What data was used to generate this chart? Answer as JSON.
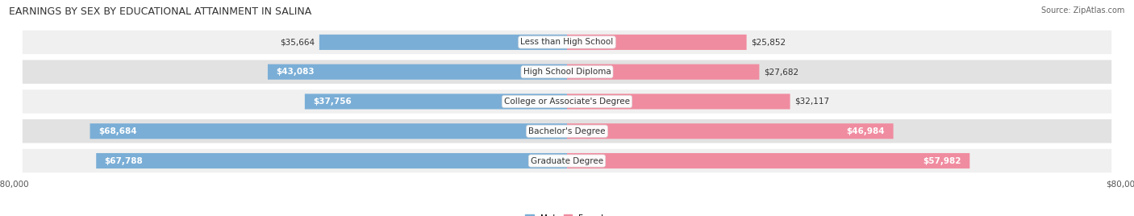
{
  "title": "EARNINGS BY SEX BY EDUCATIONAL ATTAINMENT IN SALINA",
  "source": "Source: ZipAtlas.com",
  "categories": [
    "Less than High School",
    "High School Diploma",
    "College or Associate's Degree",
    "Bachelor's Degree",
    "Graduate Degree"
  ],
  "male_values": [
    35664,
    43083,
    37756,
    68684,
    67788
  ],
  "female_values": [
    25852,
    27682,
    32117,
    46984,
    57982
  ],
  "male_labels": [
    "$35,664",
    "$43,083",
    "$37,756",
    "$68,684",
    "$67,788"
  ],
  "female_labels": [
    "$25,852",
    "$27,682",
    "$32,117",
    "$46,984",
    "$57,982"
  ],
  "axis_max": 80000,
  "male_color": "#7aaed6",
  "female_color": "#f08ca0",
  "row_bg_color_odd": "#f0f0f0",
  "row_bg_color_even": "#e2e2e2",
  "title_fontsize": 9.0,
  "label_fontsize": 7.5,
  "tick_fontsize": 7.5,
  "bg_color": "#ffffff",
  "source_fontsize": 7.0
}
